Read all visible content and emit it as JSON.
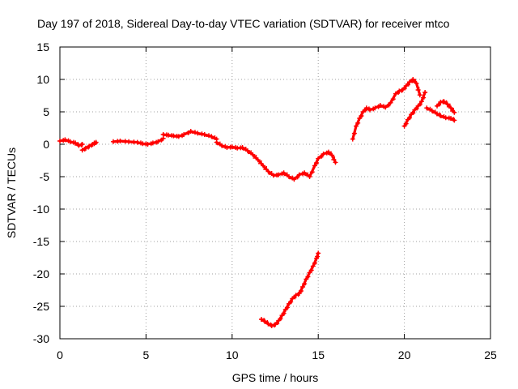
{
  "chart_data": {
    "type": "scatter",
    "title": "Day 197 of 2018, Sidereal Day-to-day VTEC variation (SDTVAR) for receiver mtco",
    "xlabel": "GPS time / hours",
    "ylabel": "SDTVAR / TECUs",
    "xlim": [
      0,
      25
    ],
    "ylim": [
      -30,
      15
    ],
    "xticks": [
      0,
      5,
      10,
      15,
      20,
      25
    ],
    "yticks": [
      15,
      10,
      5,
      0,
      -5,
      -10,
      -15,
      -20,
      -25,
      -30
    ],
    "xtick_labels": [
      "0",
      "5",
      "10",
      "15",
      "20",
      "25"
    ],
    "ytick_labels": [
      "15",
      "10",
      "5",
      "0",
      "-5",
      "-10",
      "-15",
      "-20",
      "-25",
      "-30"
    ],
    "grid": true,
    "legend": "none",
    "marker": "plus",
    "color": "#ff0000",
    "series": [
      {
        "name": "seg-1",
        "x": [
          0.0,
          0.3,
          0.6,
          0.9,
          1.1,
          1.3
        ],
        "y": [
          0.5,
          0.7,
          0.4,
          0.2,
          -0.2,
          0.0
        ]
      },
      {
        "name": "seg-2",
        "x": [
          1.3,
          1.5,
          1.7,
          1.9,
          2.0,
          2.1
        ],
        "y": [
          -0.9,
          -0.6,
          -0.3,
          0.0,
          0.2,
          0.3
        ]
      },
      {
        "name": "seg-3",
        "x": [
          3.1,
          3.5,
          4.0,
          4.5,
          4.8,
          5.1,
          5.4,
          5.7,
          6.0
        ],
        "y": [
          0.4,
          0.5,
          0.4,
          0.3,
          0.1,
          0.0,
          0.2,
          0.4,
          0.9
        ]
      },
      {
        "name": "seg-4",
        "x": [
          6.0,
          6.3,
          6.6,
          6.9,
          7.2,
          7.6,
          8.0,
          8.4,
          8.8,
          9.1
        ],
        "y": [
          1.5,
          1.4,
          1.3,
          1.2,
          1.5,
          2.0,
          1.7,
          1.5,
          1.2,
          0.8
        ]
      },
      {
        "name": "seg-5",
        "x": [
          9.1,
          9.4,
          9.7,
          10.0,
          10.3,
          10.6,
          10.9,
          11.2,
          11.5,
          11.8,
          12.1,
          12.4,
          12.7,
          13.0,
          13.3,
          13.6,
          13.9,
          14.2,
          14.5,
          14.8,
          15.0,
          15.3,
          15.6,
          15.8,
          16.0
        ],
        "y": [
          0.3,
          -0.2,
          -0.5,
          -0.4,
          -0.6,
          -0.5,
          -1.0,
          -1.6,
          -2.4,
          -3.3,
          -4.2,
          -4.8,
          -4.7,
          -4.4,
          -5.0,
          -5.4,
          -4.7,
          -4.4,
          -5.0,
          -3.3,
          -2.2,
          -1.5,
          -1.2,
          -1.7,
          -2.8
        ]
      },
      {
        "name": "seg-6",
        "x": [
          11.7,
          11.9,
          12.1,
          12.3,
          12.5,
          12.7,
          12.9,
          13.1,
          13.3,
          13.5,
          13.7,
          13.9,
          14.1,
          14.3,
          14.5,
          14.7,
          14.9,
          15.0
        ],
        "y": [
          -27.0,
          -27.3,
          -27.7,
          -28.0,
          -27.8,
          -27.2,
          -26.4,
          -25.5,
          -24.6,
          -23.8,
          -23.3,
          -23.0,
          -22.0,
          -20.8,
          -19.8,
          -18.8,
          -17.6,
          -16.8
        ]
      },
      {
        "name": "seg-7",
        "x": [
          17.0,
          17.2,
          17.4,
          17.6,
          17.8,
          18.0,
          18.3,
          18.6,
          18.9,
          19.2,
          19.5,
          19.7,
          19.9,
          20.1,
          20.3,
          20.5,
          20.7,
          20.9
        ],
        "y": [
          0.8,
          2.8,
          4.0,
          5.0,
          5.6,
          5.3,
          5.6,
          6.0,
          5.7,
          6.4,
          7.8,
          8.2,
          8.4,
          9.0,
          9.6,
          10.0,
          9.4,
          7.6
        ]
      },
      {
        "name": "seg-8",
        "x": [
          20.0,
          20.2,
          20.4,
          20.6,
          20.8,
          21.0,
          21.2
        ],
        "y": [
          2.8,
          3.8,
          4.6,
          5.3,
          5.9,
          6.6,
          8.0
        ]
      },
      {
        "name": "seg-9",
        "x": [
          21.3,
          21.6,
          21.9,
          22.1,
          22.4,
          22.7,
          22.9
        ],
        "y": [
          5.6,
          5.2,
          4.7,
          4.4,
          4.1,
          4.0,
          3.7
        ]
      },
      {
        "name": "seg-10",
        "x": [
          21.9,
          22.1,
          22.3,
          22.5,
          22.7,
          22.9
        ],
        "y": [
          5.9,
          6.5,
          6.6,
          6.2,
          5.6,
          4.9
        ]
      }
    ]
  }
}
